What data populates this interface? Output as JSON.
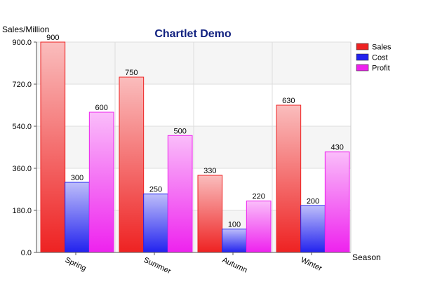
{
  "chart_data": {
    "type": "bar",
    "title": "Chartlet Demo",
    "ylabel": "Sales/Million",
    "xlabel": "Season",
    "categories": [
      "Spring",
      "Summer",
      "Autumn",
      "Winter"
    ],
    "series": [
      {
        "name": "Sales",
        "values": [
          900,
          750,
          330,
          630
        ]
      },
      {
        "name": "Cost",
        "values": [
          300,
          250,
          100,
          200
        ]
      },
      {
        "name": "Profit",
        "values": [
          600,
          500,
          220,
          430
        ]
      }
    ],
    "ylim": [
      0,
      900
    ],
    "yticks": [
      "0.0",
      "180.0",
      "360.0",
      "540.0",
      "720.0",
      "900.0"
    ],
    "grid": true,
    "legend": "top-right",
    "data_labels": true
  },
  "colors": {
    "title": "#10207f",
    "Sales": "#ee2222",
    "Cost": "#2222ee",
    "Profit": "#ee22ee"
  }
}
